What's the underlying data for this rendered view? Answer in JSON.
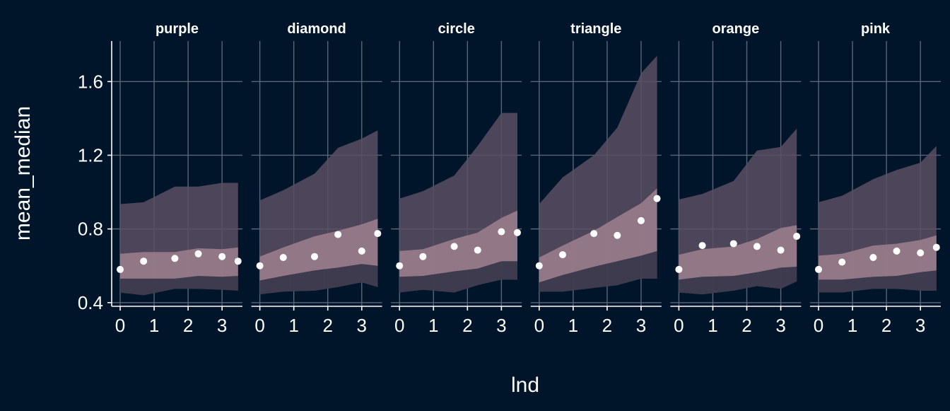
{
  "chart_data": {
    "type": "area",
    "xlabel": "lnd",
    "ylabel": "mean_median",
    "x_ticks": [
      0,
      1,
      2,
      3
    ],
    "y_ticks": [
      0.4,
      0.8,
      1.2,
      1.6
    ],
    "y_tick_labels": [
      "0.4",
      "0.8",
      "1.2",
      "1.6"
    ],
    "xlim": [
      -0.25,
      3.6
    ],
    "ylim": [
      0.38,
      1.82
    ],
    "grid": true,
    "colors": {
      "background": "#001529",
      "outer_band": "#5a4d62",
      "mid_band": "#3e3a4e",
      "inner_band": "#9a7c8c",
      "points": "#ffffff"
    },
    "facets": [
      {
        "title": "purple",
        "x": [
          0,
          0.69,
          1.61,
          2.3,
          3.0,
          3.47
        ],
        "points": [
          0.58,
          0.625,
          0.64,
          0.665,
          0.65,
          0.625
        ],
        "outer_lo": [
          0.455,
          0.44,
          0.475,
          0.475,
          0.47,
          0.465
        ],
        "outer_hi": [
          0.935,
          0.945,
          1.03,
          1.03,
          1.05,
          1.05
        ],
        "inner_lo": [
          0.53,
          0.53,
          0.53,
          0.545,
          0.54,
          0.545
        ],
        "inner_hi": [
          0.665,
          0.675,
          0.675,
          0.695,
          0.69,
          0.7
        ]
      },
      {
        "title": "diamond",
        "x": [
          0,
          0.69,
          1.61,
          2.3,
          3.0,
          3.47
        ],
        "points": [
          0.6,
          0.645,
          0.65,
          0.77,
          0.68,
          0.775
        ],
        "outer_lo": [
          0.445,
          0.46,
          0.465,
          0.485,
          0.51,
          0.485
        ],
        "outer_hi": [
          0.955,
          1.01,
          1.1,
          1.24,
          1.29,
          1.335
        ],
        "inner_lo": [
          0.52,
          0.545,
          0.575,
          0.59,
          0.61,
          0.6
        ],
        "inner_hi": [
          0.65,
          0.7,
          0.76,
          0.79,
          0.825,
          0.855
        ]
      },
      {
        "title": "circle",
        "x": [
          0,
          0.69,
          1.61,
          2.3,
          3.0,
          3.47
        ],
        "points": [
          0.6,
          0.65,
          0.705,
          0.685,
          0.785,
          0.78
        ],
        "outer_lo": [
          0.455,
          0.47,
          0.455,
          0.495,
          0.525,
          0.525
        ],
        "outer_hi": [
          0.965,
          1.005,
          1.09,
          1.25,
          1.43,
          1.43
        ],
        "inner_lo": [
          0.54,
          0.545,
          0.57,
          0.585,
          0.625,
          0.625
        ],
        "inner_hi": [
          0.68,
          0.69,
          0.745,
          0.78,
          0.86,
          0.9
        ]
      },
      {
        "title": "triangle",
        "x": [
          0,
          0.69,
          1.61,
          2.3,
          3.0,
          3.47
        ],
        "points": [
          0.6,
          0.66,
          0.775,
          0.765,
          0.845,
          0.965
        ],
        "outer_lo": [
          0.46,
          0.46,
          0.48,
          0.495,
          0.53,
          0.53
        ],
        "outer_hi": [
          0.935,
          1.08,
          1.2,
          1.35,
          1.645,
          1.74
        ],
        "inner_lo": [
          0.51,
          0.55,
          0.595,
          0.625,
          0.655,
          0.68
        ],
        "inner_hi": [
          0.645,
          0.71,
          0.79,
          0.865,
          0.94,
          1.02
        ]
      },
      {
        "title": "orange",
        "x": [
          0,
          0.69,
          1.61,
          2.3,
          3.0,
          3.47
        ],
        "points": [
          0.58,
          0.71,
          0.72,
          0.705,
          0.685,
          0.76
        ],
        "outer_lo": [
          0.455,
          0.445,
          0.465,
          0.49,
          0.475,
          0.515
        ],
        "outer_hi": [
          0.96,
          0.99,
          1.06,
          1.225,
          1.245,
          1.345
        ],
        "inner_lo": [
          0.525,
          0.54,
          0.545,
          0.565,
          0.59,
          0.595
        ],
        "inner_hi": [
          0.66,
          0.69,
          0.705,
          0.745,
          0.805,
          0.82
        ]
      },
      {
        "title": "pink",
        "x": [
          0,
          0.69,
          1.61,
          2.3,
          3.0,
          3.47
        ],
        "points": [
          0.58,
          0.62,
          0.645,
          0.68,
          0.67,
          0.7
        ],
        "outer_lo": [
          0.455,
          0.455,
          0.475,
          0.475,
          0.465,
          0.465
        ],
        "outer_hi": [
          0.945,
          0.98,
          1.07,
          1.12,
          1.16,
          1.25
        ],
        "inner_lo": [
          0.525,
          0.525,
          0.54,
          0.545,
          0.565,
          0.575
        ],
        "inner_hi": [
          0.655,
          0.665,
          0.71,
          0.72,
          0.74,
          0.765
        ]
      }
    ]
  }
}
